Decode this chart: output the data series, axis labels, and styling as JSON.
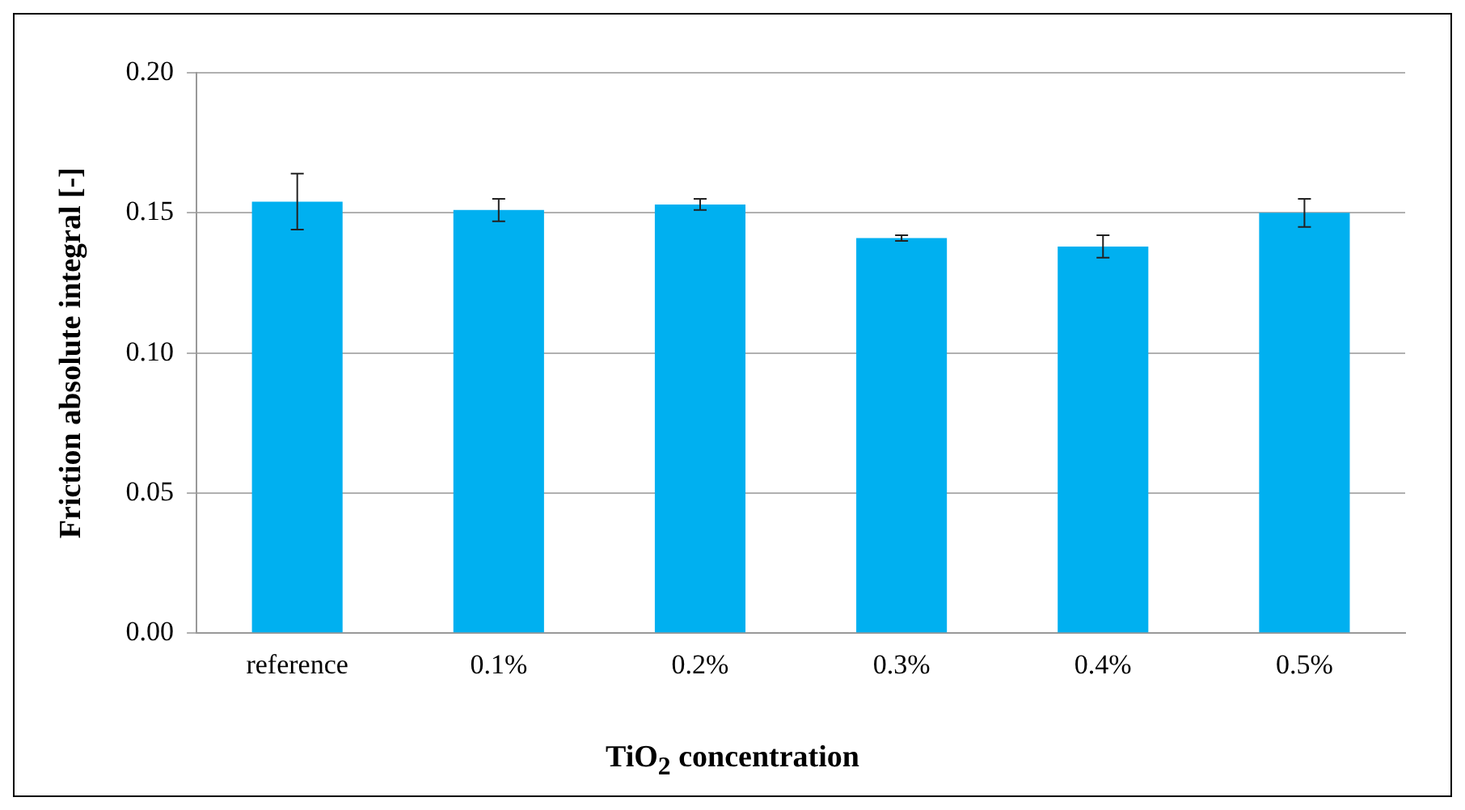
{
  "chart_data": {
    "type": "bar",
    "xlabel": "TiO$_{2}$ concentration",
    "ylabel": "Friction absolute integral [-]",
    "categories": [
      "reference",
      "0.1%",
      "0.2%",
      "0.3%",
      "0.4%",
      "0.5%"
    ],
    "values": [
      0.154,
      0.151,
      0.153,
      0.141,
      0.138,
      0.15
    ],
    "errors": [
      0.01,
      0.004,
      0.002,
      0.001,
      0.004,
      0.005
    ],
    "color": "#00b0f0",
    "ylim": [
      0,
      0.2
    ],
    "yticks": [
      {
        "value": 0,
        "label": "0.00"
      },
      {
        "value": 0.05,
        "label": "0.05"
      },
      {
        "value": 0.1,
        "label": "0.10"
      },
      {
        "value": 0.15,
        "label": "0.15"
      },
      {
        "value": 0.2,
        "label": "0.20"
      }
    ],
    "grid": "y",
    "legend": false
  }
}
